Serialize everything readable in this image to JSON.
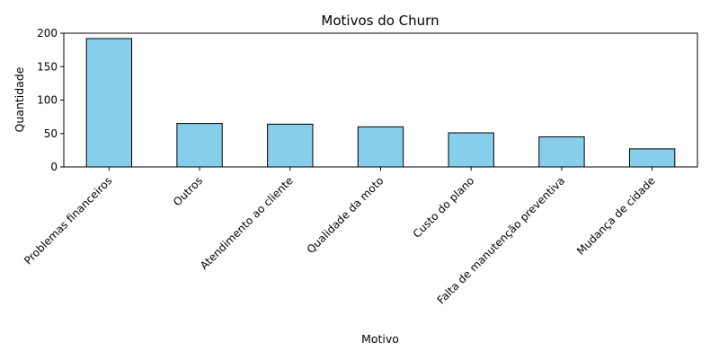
{
  "chart_data": {
    "type": "bar",
    "title": "Motivos do Churn",
    "xlabel": "Motivo",
    "ylabel": "Quantidade",
    "categories": [
      "Problemas financeiros",
      "Outros",
      "Atendimento ao cliente",
      "Qualidade da moto",
      "Custo do plano",
      "Falta de manutenção preventiva",
      "Mudança de cidade"
    ],
    "values": [
      192,
      65,
      64,
      60,
      51,
      45,
      27
    ],
    "ylim": [
      0,
      200
    ],
    "yticks": [
      0,
      50,
      100,
      150,
      200
    ],
    "grid": false,
    "legend": "none",
    "colors": {
      "bar": "#87CEEB",
      "edge": "#000000"
    }
  }
}
